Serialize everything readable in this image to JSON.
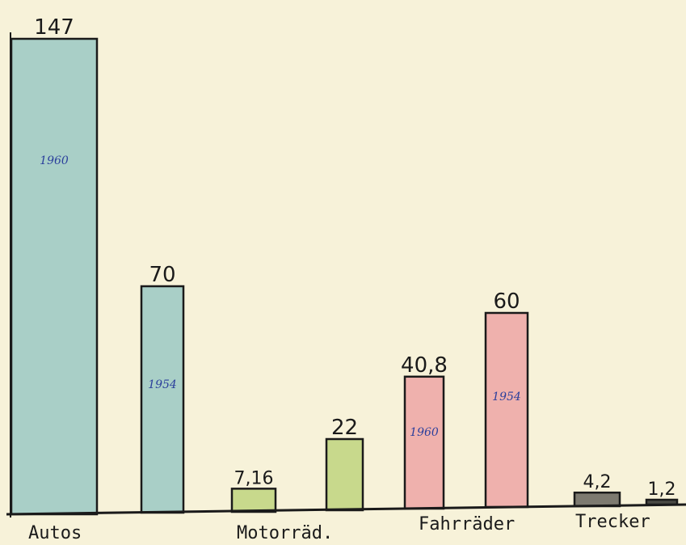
{
  "chart_data": {
    "type": "bar",
    "groups": [
      "Autos",
      "Motorräd.",
      "Fahrräder",
      "Trecker"
    ],
    "bars": [
      {
        "group": "Autos",
        "value": 147,
        "label": "147",
        "year": "1960",
        "color": "#a9cfc7"
      },
      {
        "group": "Autos",
        "value": 70,
        "label": "70",
        "year": "1954",
        "color": "#a9cfc7"
      },
      {
        "group": "Motorräd.",
        "value": 7.16,
        "label": "7,16",
        "year": "",
        "color": "#c8d98c"
      },
      {
        "group": "Motorräd.",
        "value": 22,
        "label": "22",
        "year": "",
        "color": "#c8d98c"
      },
      {
        "group": "Fahrräder",
        "value": 40.8,
        "label": "40,8",
        "year": "1960",
        "color": "#efb1ad"
      },
      {
        "group": "Fahrräder",
        "value": 60,
        "label": "60",
        "year": "1954",
        "color": "#efb1ad"
      },
      {
        "group": "Trecker",
        "value": 4.2,
        "label": "4,2",
        "year": "",
        "color": "#7d7a70"
      },
      {
        "group": "Trecker",
        "value": 1.2,
        "label": "1,2",
        "year": "",
        "color": "#4a4a44"
      }
    ],
    "title": "",
    "xlabel": "",
    "ylabel": "",
    "grid": false,
    "legend": "none"
  }
}
